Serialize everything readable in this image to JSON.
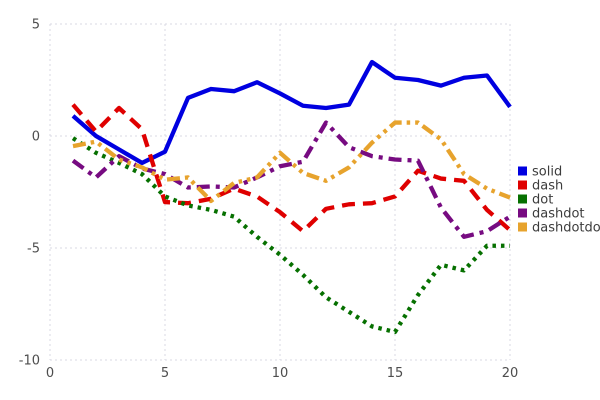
{
  "chart_data": {
    "type": "line",
    "title": "",
    "xlabel": "",
    "ylabel": "",
    "xlim": [
      0,
      20
    ],
    "ylim": [
      -10,
      5
    ],
    "x_ticks": [
      0,
      5,
      10,
      15,
      20
    ],
    "y_ticks": [
      5,
      0,
      -5,
      -10
    ],
    "grid": true,
    "grid_color": "#d9d9e3",
    "tick_label_color": "#4d4d4d",
    "legend_position": "right",
    "x": [
      1,
      2,
      3,
      4,
      5,
      6,
      7,
      8,
      9,
      10,
      11,
      12,
      13,
      14,
      15,
      16,
      17,
      18,
      19,
      20
    ],
    "series": [
      {
        "name": "solid",
        "color": "#0000e0",
        "line_style": "solid",
        "values": [
          0.9,
          0.0,
          -0.6,
          -1.2,
          -0.7,
          1.7,
          2.1,
          2.0,
          2.4,
          1.9,
          1.35,
          1.25,
          1.4,
          3.3,
          2.6,
          2.5,
          2.25,
          2.6,
          2.7,
          1.3
        ]
      },
      {
        "name": "dash",
        "color": "#df0000",
        "line_style": "dash",
        "values": [
          1.4,
          0.2,
          1.25,
          0.3,
          -2.95,
          -3.0,
          -2.8,
          -2.35,
          -2.7,
          -3.4,
          -4.25,
          -3.25,
          -3.05,
          -3.0,
          -2.7,
          -1.55,
          -1.9,
          -2.0,
          -3.3,
          -4.2
        ]
      },
      {
        "name": "dot",
        "color": "#067000",
        "line_style": "dot",
        "values": [
          -0.1,
          -0.75,
          -1.2,
          -1.7,
          -2.7,
          -3.1,
          -3.3,
          -3.6,
          -4.5,
          -5.3,
          -6.2,
          -7.2,
          -7.85,
          -8.5,
          -8.75,
          -7.1,
          -5.75,
          -6.0,
          -4.9,
          -4.9
        ]
      },
      {
        "name": "dashdot",
        "color": "#770b81",
        "line_style": "dashdot",
        "values": [
          -1.1,
          -1.85,
          -0.9,
          -1.45,
          -1.7,
          -2.3,
          -2.25,
          -2.3,
          -1.85,
          -1.35,
          -1.15,
          0.6,
          -0.5,
          -0.9,
          -1.05,
          -1.1,
          -3.2,
          -4.5,
          -4.25,
          -3.6
        ]
      },
      {
        "name": "dashdotdot",
        "color": "#e7a32d",
        "line_style": "dashdotdot",
        "values": [
          -0.45,
          -0.25,
          -1.05,
          -1.4,
          -1.95,
          -1.85,
          -2.9,
          -2.1,
          -1.85,
          -0.75,
          -1.65,
          -2.0,
          -1.4,
          -0.3,
          0.6,
          0.6,
          -0.15,
          -1.7,
          -2.35,
          -2.75
        ]
      }
    ]
  }
}
